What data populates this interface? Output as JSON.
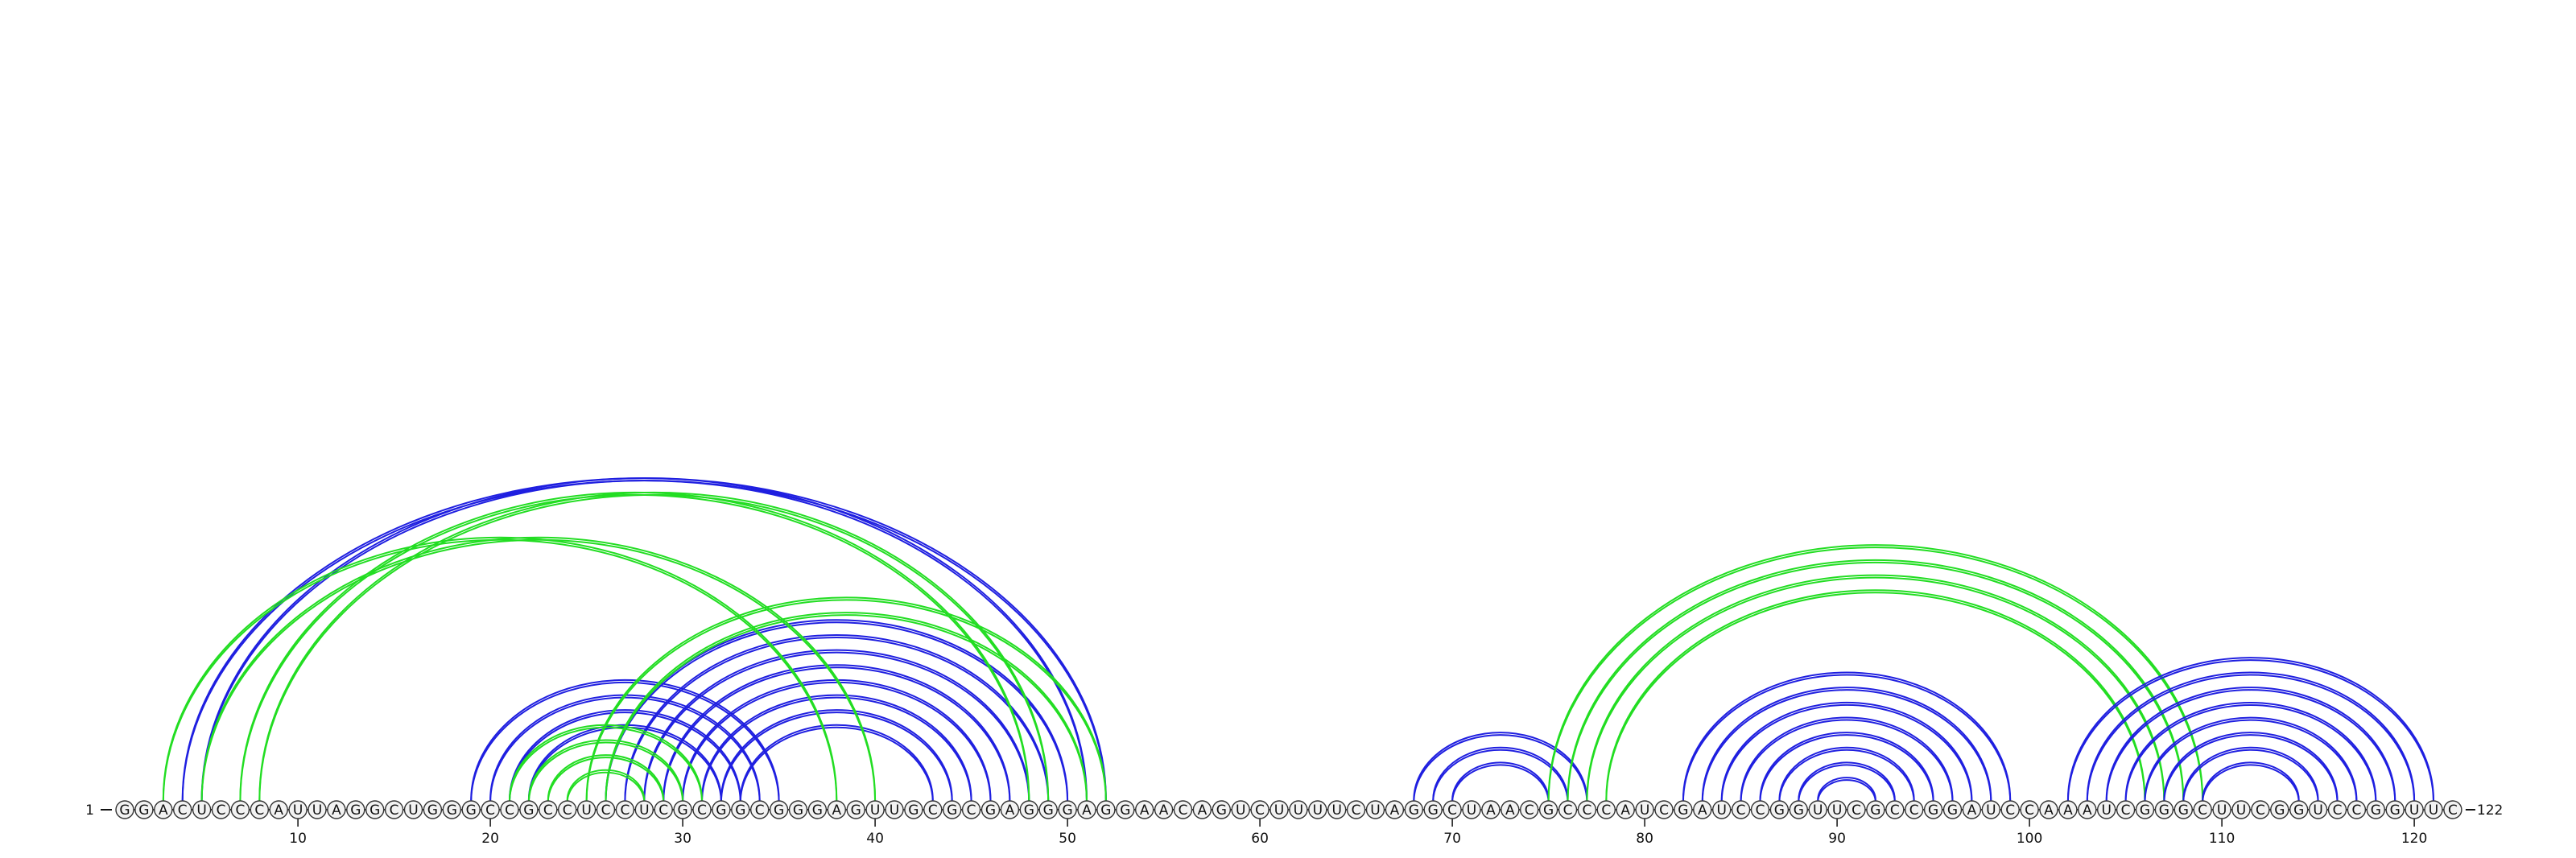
{
  "sequence": "GGACUCCCAUUAGGCUGGGCCGCCUCCUCGCGGCGGGAGUUGCGCGAGGGAGGAACAGUCUUUUCUAGGCUAACGCCCAUCGAUCCGGUUCGCCGGAUCCAAAUCGGGCUUCGGUCCGGUUC",
  "start_label": "1",
  "end_label": "122",
  "tick_labels": [
    {
      "pos": 10,
      "text": "10"
    },
    {
      "pos": 20,
      "text": "20"
    },
    {
      "pos": 30,
      "text": "30"
    },
    {
      "pos": 40,
      "text": "40"
    },
    {
      "pos": 50,
      "text": "50"
    },
    {
      "pos": 60,
      "text": "60"
    },
    {
      "pos": 70,
      "text": "70"
    },
    {
      "pos": 80,
      "text": "80"
    },
    {
      "pos": 90,
      "text": "90"
    },
    {
      "pos": 100,
      "text": "100"
    },
    {
      "pos": 110,
      "text": "110"
    },
    {
      "pos": 120,
      "text": "120"
    }
  ],
  "colors": {
    "blue": "#1f1fe0",
    "green": "#22dd22",
    "nucleotide_fill": "#f2f2f2",
    "nucleotide_stroke": "#333333"
  },
  "arc_groups": [
    {
      "color": "blue",
      "pairs": [
        [
          4,
          52
        ],
        [
          5,
          51
        ]
      ]
    },
    {
      "color": "blue",
      "pairs": [
        [
          19,
          35
        ],
        [
          20,
          34
        ],
        [
          21,
          33
        ],
        [
          22,
          32
        ]
      ]
    },
    {
      "color": "blue",
      "pairs": [
        [
          26,
          50
        ],
        [
          27,
          49
        ],
        [
          28,
          48
        ],
        [
          29,
          47
        ],
        [
          30,
          46
        ],
        [
          31,
          45
        ],
        [
          32,
          44
        ],
        [
          33,
          43
        ]
      ]
    },
    {
      "color": "green",
      "pairs": [
        [
          3,
          38
        ],
        [
          5,
          40
        ]
      ]
    },
    {
      "color": "green",
      "pairs": [
        [
          7,
          48
        ],
        [
          8,
          49
        ]
      ]
    },
    {
      "color": "green",
      "pairs": [
        [
          21,
          31
        ],
        [
          22,
          30
        ],
        [
          23,
          29
        ],
        [
          24,
          28
        ]
      ]
    },
    {
      "color": "green",
      "pairs": [
        [
          25,
          52
        ],
        [
          26,
          51
        ]
      ]
    },
    {
      "color": "blue",
      "pairs": [
        [
          68,
          77
        ],
        [
          69,
          76
        ],
        [
          70,
          75
        ]
      ]
    },
    {
      "color": "green",
      "pairs": [
        [
          75,
          109
        ],
        [
          76,
          108
        ],
        [
          77,
          107
        ],
        [
          78,
          106
        ]
      ]
    },
    {
      "color": "blue",
      "pairs": [
        [
          82,
          99
        ],
        [
          83,
          98
        ],
        [
          84,
          97
        ],
        [
          85,
          96
        ],
        [
          86,
          95
        ],
        [
          87,
          94
        ],
        [
          88,
          93
        ],
        [
          89,
          92
        ]
      ]
    },
    {
      "color": "blue",
      "pairs": [
        [
          102,
          121
        ],
        [
          103,
          120
        ],
        [
          104,
          119
        ],
        [
          105,
          118
        ],
        [
          106,
          117
        ],
        [
          107,
          116
        ],
        [
          108,
          115
        ],
        [
          109,
          114
        ]
      ]
    }
  ],
  "chart_data": {
    "type": "arc-diagram",
    "length": 122,
    "series": [
      {
        "color": "blue",
        "pairs": [
          [
            4,
            52
          ],
          [
            5,
            51
          ],
          [
            19,
            35
          ],
          [
            20,
            34
          ],
          [
            21,
            33
          ],
          [
            22,
            32
          ],
          [
            26,
            50
          ],
          [
            27,
            49
          ],
          [
            28,
            48
          ],
          [
            29,
            47
          ],
          [
            30,
            46
          ],
          [
            31,
            45
          ],
          [
            32,
            44
          ],
          [
            33,
            43
          ],
          [
            68,
            77
          ],
          [
            69,
            76
          ],
          [
            70,
            75
          ],
          [
            82,
            99
          ],
          [
            83,
            98
          ],
          [
            84,
            97
          ],
          [
            85,
            96
          ],
          [
            86,
            95
          ],
          [
            87,
            94
          ],
          [
            88,
            93
          ],
          [
            89,
            92
          ],
          [
            102,
            121
          ],
          [
            103,
            120
          ],
          [
            104,
            119
          ],
          [
            105,
            118
          ],
          [
            106,
            117
          ],
          [
            107,
            116
          ],
          [
            108,
            115
          ],
          [
            109,
            114
          ]
        ]
      },
      {
        "color": "green",
        "pairs": [
          [
            3,
            38
          ],
          [
            5,
            40
          ],
          [
            7,
            48
          ],
          [
            8,
            49
          ],
          [
            21,
            31
          ],
          [
            22,
            30
          ],
          [
            23,
            29
          ],
          [
            24,
            28
          ],
          [
            25,
            52
          ],
          [
            26,
            51
          ],
          [
            75,
            109
          ],
          [
            76,
            108
          ],
          [
            77,
            107
          ],
          [
            78,
            106
          ]
        ]
      }
    ]
  }
}
